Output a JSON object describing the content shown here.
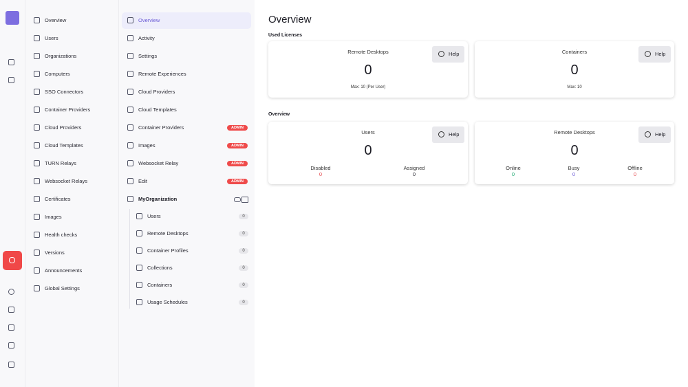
{
  "admin_nav": [
    "Overview",
    "Users",
    "Organizations",
    "Computers",
    "SSO Connectors",
    "Container Providers",
    "Cloud Providers",
    "Cloud Templates",
    "TURN Relays",
    "Websocket Relays",
    "Certificates",
    "Images",
    "Health checks",
    "Versions",
    "Announcements",
    "Global Settings"
  ],
  "org_nav": {
    "items": [
      {
        "label": "Overview"
      },
      {
        "label": "Activity"
      },
      {
        "label": "Settings"
      },
      {
        "label": "Remote Experiences"
      },
      {
        "label": "Cloud Providers"
      },
      {
        "label": "Cloud Templates"
      },
      {
        "label": "Container Providers",
        "badge": "ADMIN"
      },
      {
        "label": "Images",
        "badge": "ADMIN"
      },
      {
        "label": "Websocket Relay",
        "badge": "ADMIN"
      },
      {
        "label": "Edit",
        "badge": "ADMIN"
      }
    ],
    "organization": {
      "name": "MyOrganization",
      "items": [
        {
          "label": "Users",
          "count": 0
        },
        {
          "label": "Remote Desktops",
          "count": 0
        },
        {
          "label": "Container Profiles",
          "count": 0
        },
        {
          "label": "Collections",
          "count": 0
        },
        {
          "label": "Containers",
          "count": 0
        },
        {
          "label": "Usage Schedules",
          "count": 0
        }
      ]
    }
  },
  "main": {
    "title": "Overview",
    "sections": [
      {
        "heading": "Used Licenses",
        "cards": [
          {
            "title": "Remote Desktops",
            "value": 0,
            "note": "Max: 10 (Per User)",
            "button": "Help"
          },
          {
            "title": "Containers",
            "value": 0,
            "note": "Max: 10",
            "button": "Help"
          }
        ]
      },
      {
        "heading": "Overview",
        "cards": [
          {
            "title": "Users",
            "value": 0,
            "button": "Help",
            "stats": [
              {
                "label": "Disabled",
                "value": 0,
                "color": "#e5484d"
              },
              {
                "label": "Assigned",
                "value": 0,
                "color": "#1c1c24"
              }
            ]
          },
          {
            "title": "Remote Desktops",
            "value": 0,
            "button": "Help",
            "stats": [
              {
                "label": "Online",
                "value": 0,
                "color": "#12a56a"
              },
              {
                "label": "Busy",
                "value": 0,
                "color": "#6b5bd6"
              },
              {
                "label": "Offline",
                "value": 0,
                "color": "#e5484d"
              }
            ]
          }
        ]
      }
    ]
  }
}
